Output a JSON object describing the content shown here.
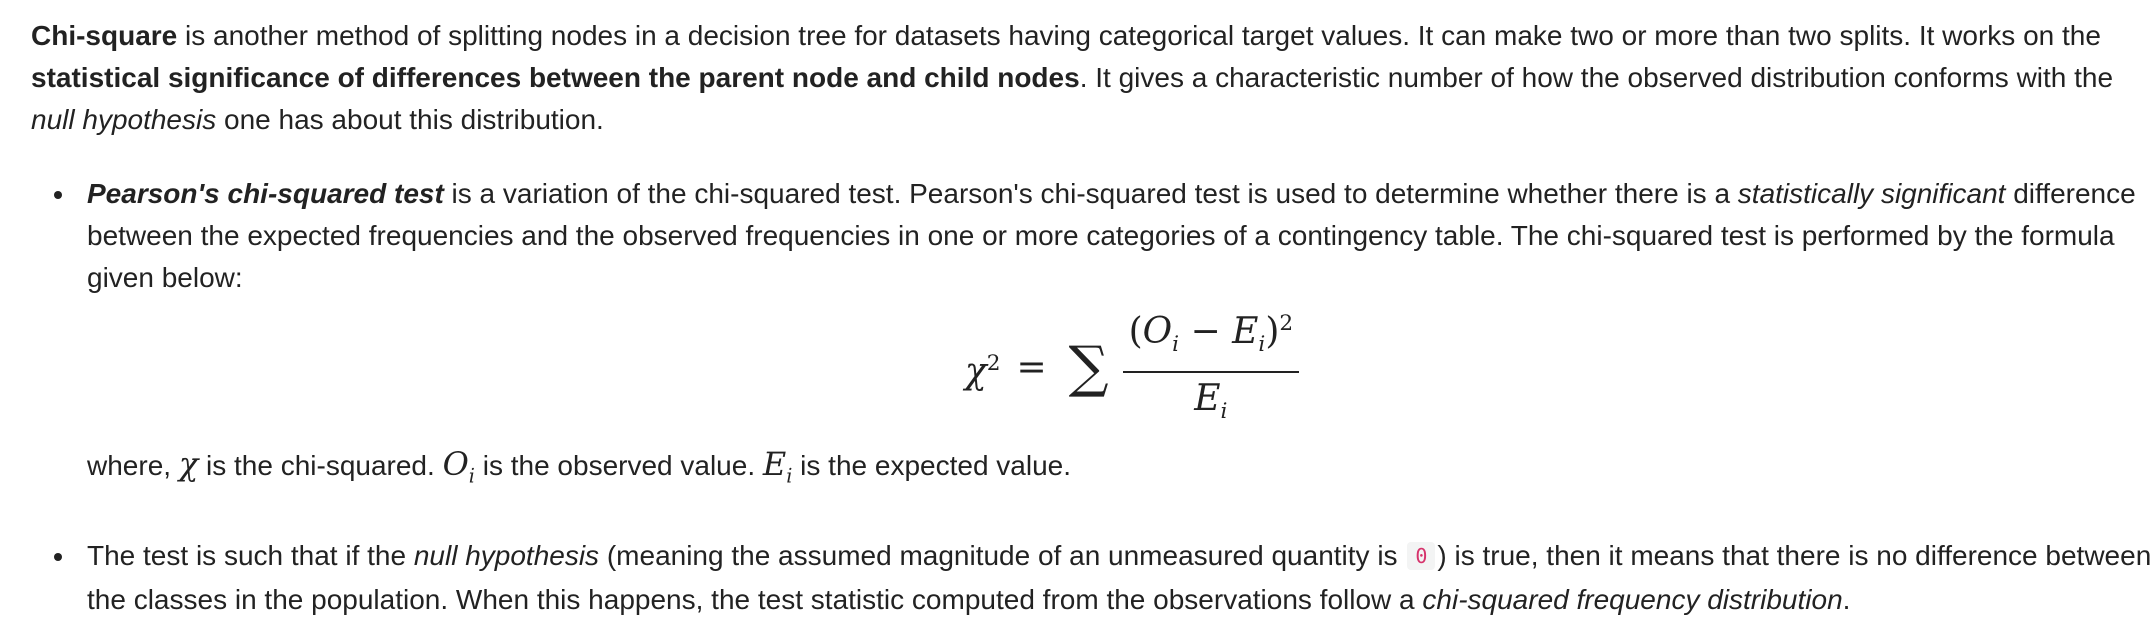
{
  "intro": {
    "term": "Chi-square",
    "text1": " is another method of splitting nodes in a decision tree for datasets having categorical target values. It can make two or more than two splits. It works on the ",
    "bold_phrase": "statistical significance of differences between the parent node and child nodes",
    "text2": ". It gives a characteristic number of how the observed distribution conforms with the ",
    "italic_phrase": "null hypothesis",
    "text3": " one has about this distribution."
  },
  "bullet1": {
    "term": "Pearson's chi-squared test",
    "text1": " is a variation of the chi-squared test. Pearson's chi-squared test is used to determine whether there is a ",
    "italic_phrase": "statistically significant",
    "text2": " difference between the expected frequencies and the observed frequencies in one or more categories of a contingency table. The chi-squared test is performed by the formula given below:"
  },
  "formula": {
    "lhs_symbol": "χ",
    "lhs_exp": "2",
    "equals": "=",
    "sum_symbol": "∑",
    "num_open": "(",
    "num_o": "O",
    "num_o_sub": "i",
    "num_minus": " − ",
    "num_e": "E",
    "num_e_sub": "i",
    "num_close": ")",
    "num_exp": "2",
    "den_e": "E",
    "den_e_sub": "i"
  },
  "where": {
    "text1": "where, ",
    "chi": "χ",
    "text2": " is the chi-squared. ",
    "o": "O",
    "o_sub": "i",
    "text3": " is the observed value. ",
    "e": "E",
    "e_sub": "i",
    "text4": " is the expected value."
  },
  "bullet2": {
    "text1": "The test is such that if the ",
    "italic1": "null hypothesis",
    "text2": " (meaning the assumed magnitude of an unmeasured quantity is ",
    "code": "0",
    "text3": ") is true, then it means that there is no difference between the classes in the population. When this happens, the test statistic computed from the observations follow a ",
    "italic2": "chi-squared frequency distribution",
    "text4": "."
  }
}
